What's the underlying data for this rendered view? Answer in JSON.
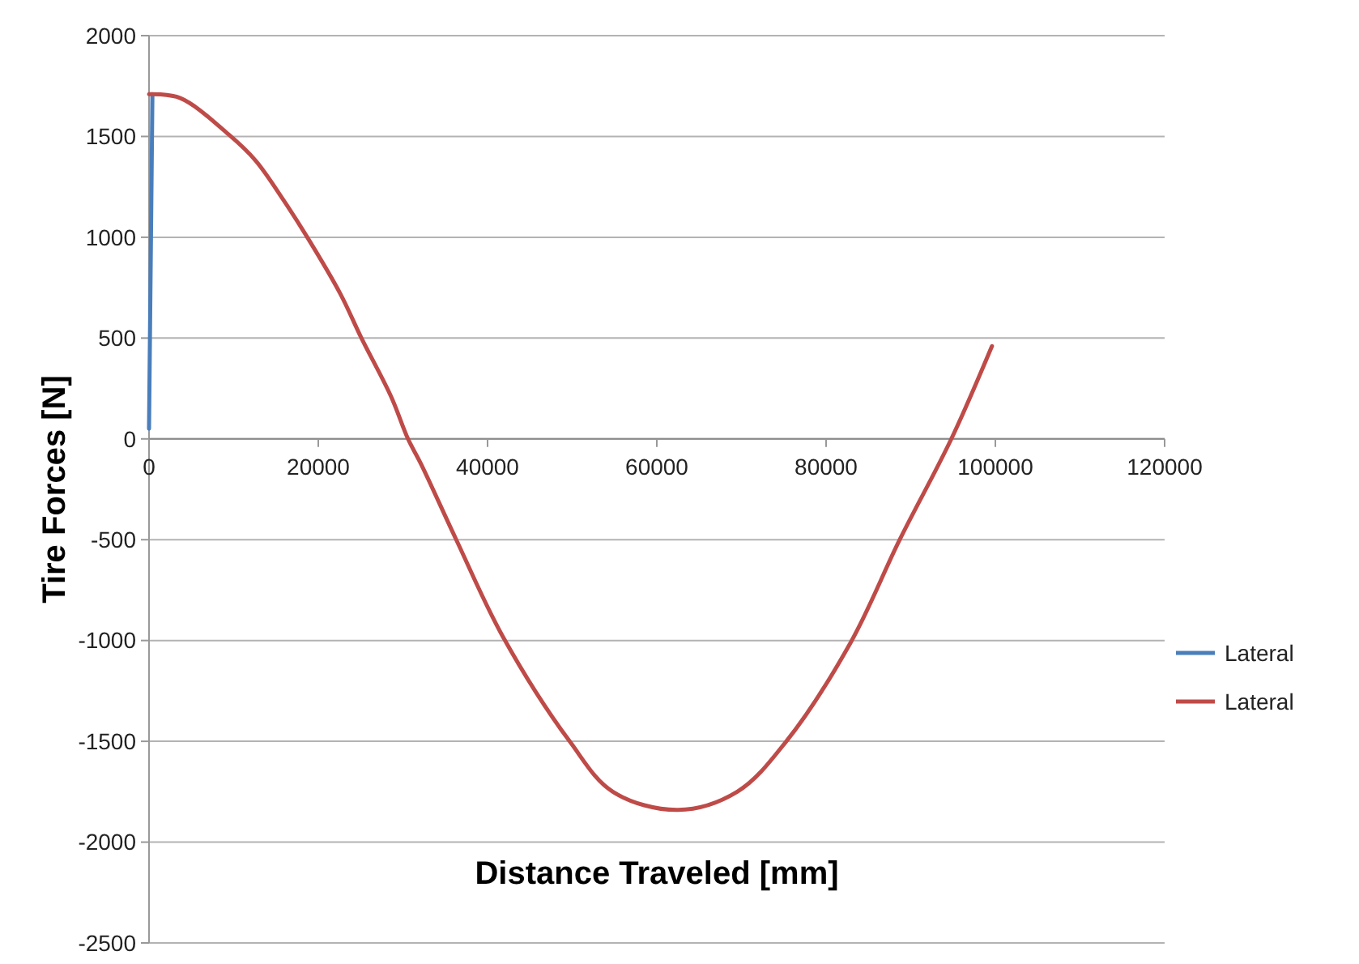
{
  "chart_data": {
    "type": "line",
    "xlabel": "Distance Traveled [mm]",
    "ylabel": "Tire Forces [N]",
    "xlim": [
      0,
      120000
    ],
    "xticks": [
      0,
      20000,
      40000,
      60000,
      80000,
      100000,
      120000
    ],
    "ylim": [
      -2500,
      2000
    ],
    "yticks": [
      -2500,
      -2000,
      -1500,
      -1000,
      -500,
      0,
      500,
      1000,
      1500,
      2000
    ],
    "grid": "y",
    "legend": "right",
    "line_style": "solid",
    "marker": "none",
    "series": [
      {
        "name": "Lateral",
        "color": "#4a7ebb",
        "x": [
          0,
          400
        ],
        "values": [
          50,
          1710
        ]
      },
      {
        "name": "Lateral",
        "color": "#be4b48",
        "x": [
          0,
          3700,
          9400,
          12600,
          15800,
          18700,
          22600,
          25100,
          28600,
          30600,
          32200,
          36300,
          41800,
          49700,
          54800,
          62500,
          69500,
          75300,
          82900,
          88700,
          94800,
          99600
        ],
        "values": [
          1710,
          1690,
          1510,
          1380,
          1190,
          1000,
          720,
          500,
          210,
          0,
          -130,
          -500,
          -980,
          -1500,
          -1750,
          -1840,
          -1750,
          -1500,
          -1010,
          -500,
          0,
          460
        ]
      }
    ]
  }
}
